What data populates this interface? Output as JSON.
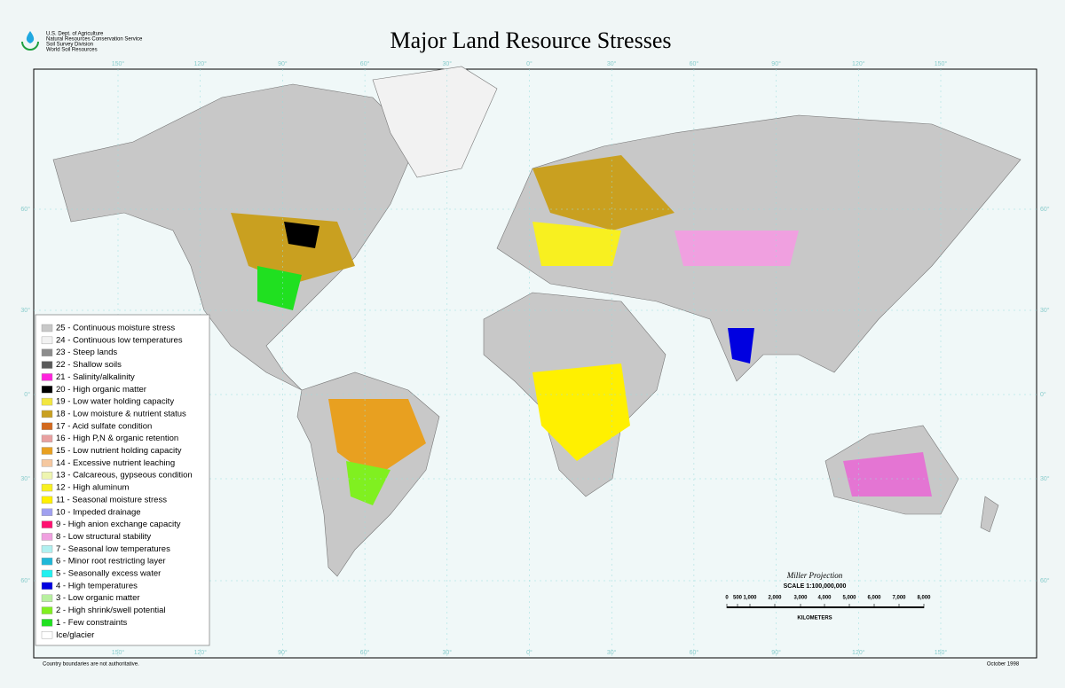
{
  "header": {
    "title": "Major Land Resource Stresses",
    "agency": [
      "U.S. Dept. of Agriculture",
      "Natural Resources Conservation Service",
      "Soil Survey Division",
      "World Soil Resources"
    ]
  },
  "graticule": {
    "longitudes": [
      "150°",
      "120°",
      "90°",
      "60°",
      "30°",
      "0°",
      "30°",
      "60°",
      "90°",
      "120°",
      "150°"
    ],
    "latitudes": [
      "60°",
      "30°",
      "0°",
      "30°",
      "60°"
    ]
  },
  "legend": {
    "items": [
      {
        "label": "25 - Continuous moisture stress",
        "color": "#c8c8c8"
      },
      {
        "label": "24 - Continuous low temperatures",
        "color": "#f2f2f2"
      },
      {
        "label": "23 - Steep lands",
        "color": "#8c8c8c"
      },
      {
        "label": "22 - Shallow soils",
        "color": "#5a5a5a"
      },
      {
        "label": "21 - Salinity/alkalinity",
        "color": "#ff22dd"
      },
      {
        "label": "20 - High organic matter",
        "color": "#000000"
      },
      {
        "label": "19 - Low water holding capacity",
        "color": "#f2e640"
      },
      {
        "label": "18 - Low moisture & nutrient status",
        "color": "#c9a020"
      },
      {
        "label": "17 - Acid sulfate condition",
        "color": "#d2691e"
      },
      {
        "label": "16 - High P,N & organic retention",
        "color": "#e8a0a0"
      },
      {
        "label": "15 - Low nutrient holding capacity",
        "color": "#e8a020"
      },
      {
        "label": "14 - Excessive nutrient leaching",
        "color": "#f5c8a0"
      },
      {
        "label": "13 - Calcareous, gypseous condition",
        "color": "#eef5b0"
      },
      {
        "label": "12 - High aluminum",
        "color": "#f8f020"
      },
      {
        "label": "11 - Seasonal moisture stress",
        "color": "#fff000"
      },
      {
        "label": "10 - Impeded drainage",
        "color": "#a0a0f0"
      },
      {
        "label": "9 - High anion exchange capacity",
        "color": "#ff1070"
      },
      {
        "label": "8 - Low structural stability",
        "color": "#f0a0e0"
      },
      {
        "label": "7 - Seasonal low temperatures",
        "color": "#b0f0f0"
      },
      {
        "label": "6 - Minor root restricting layer",
        "color": "#20b8d8"
      },
      {
        "label": "5 - Seasonally excess water",
        "color": "#20f0f0"
      },
      {
        "label": "4 - High temperatures",
        "color": "#0000e0"
      },
      {
        "label": "3 - Low organic matter",
        "color": "#b8f0a0"
      },
      {
        "label": "2 - High shrink/swell potential",
        "color": "#80f020"
      },
      {
        "label": "1 - Few constraints",
        "color": "#20e020"
      },
      {
        "label": "Ice/glacier",
        "color": "#ffffff"
      }
    ]
  },
  "scale": {
    "projection": "Miller Projection",
    "ratio": "SCALE 1:100,000,000",
    "labels": [
      "0",
      "500",
      "1,000",
      "2,000",
      "3,000",
      "4,000",
      "5,000",
      "6,000",
      "7,000",
      "8,000"
    ],
    "unit": "KILOMETERS"
  },
  "footer": {
    "note": "Country boundaries are not authoritative.",
    "date": "October 1998"
  }
}
